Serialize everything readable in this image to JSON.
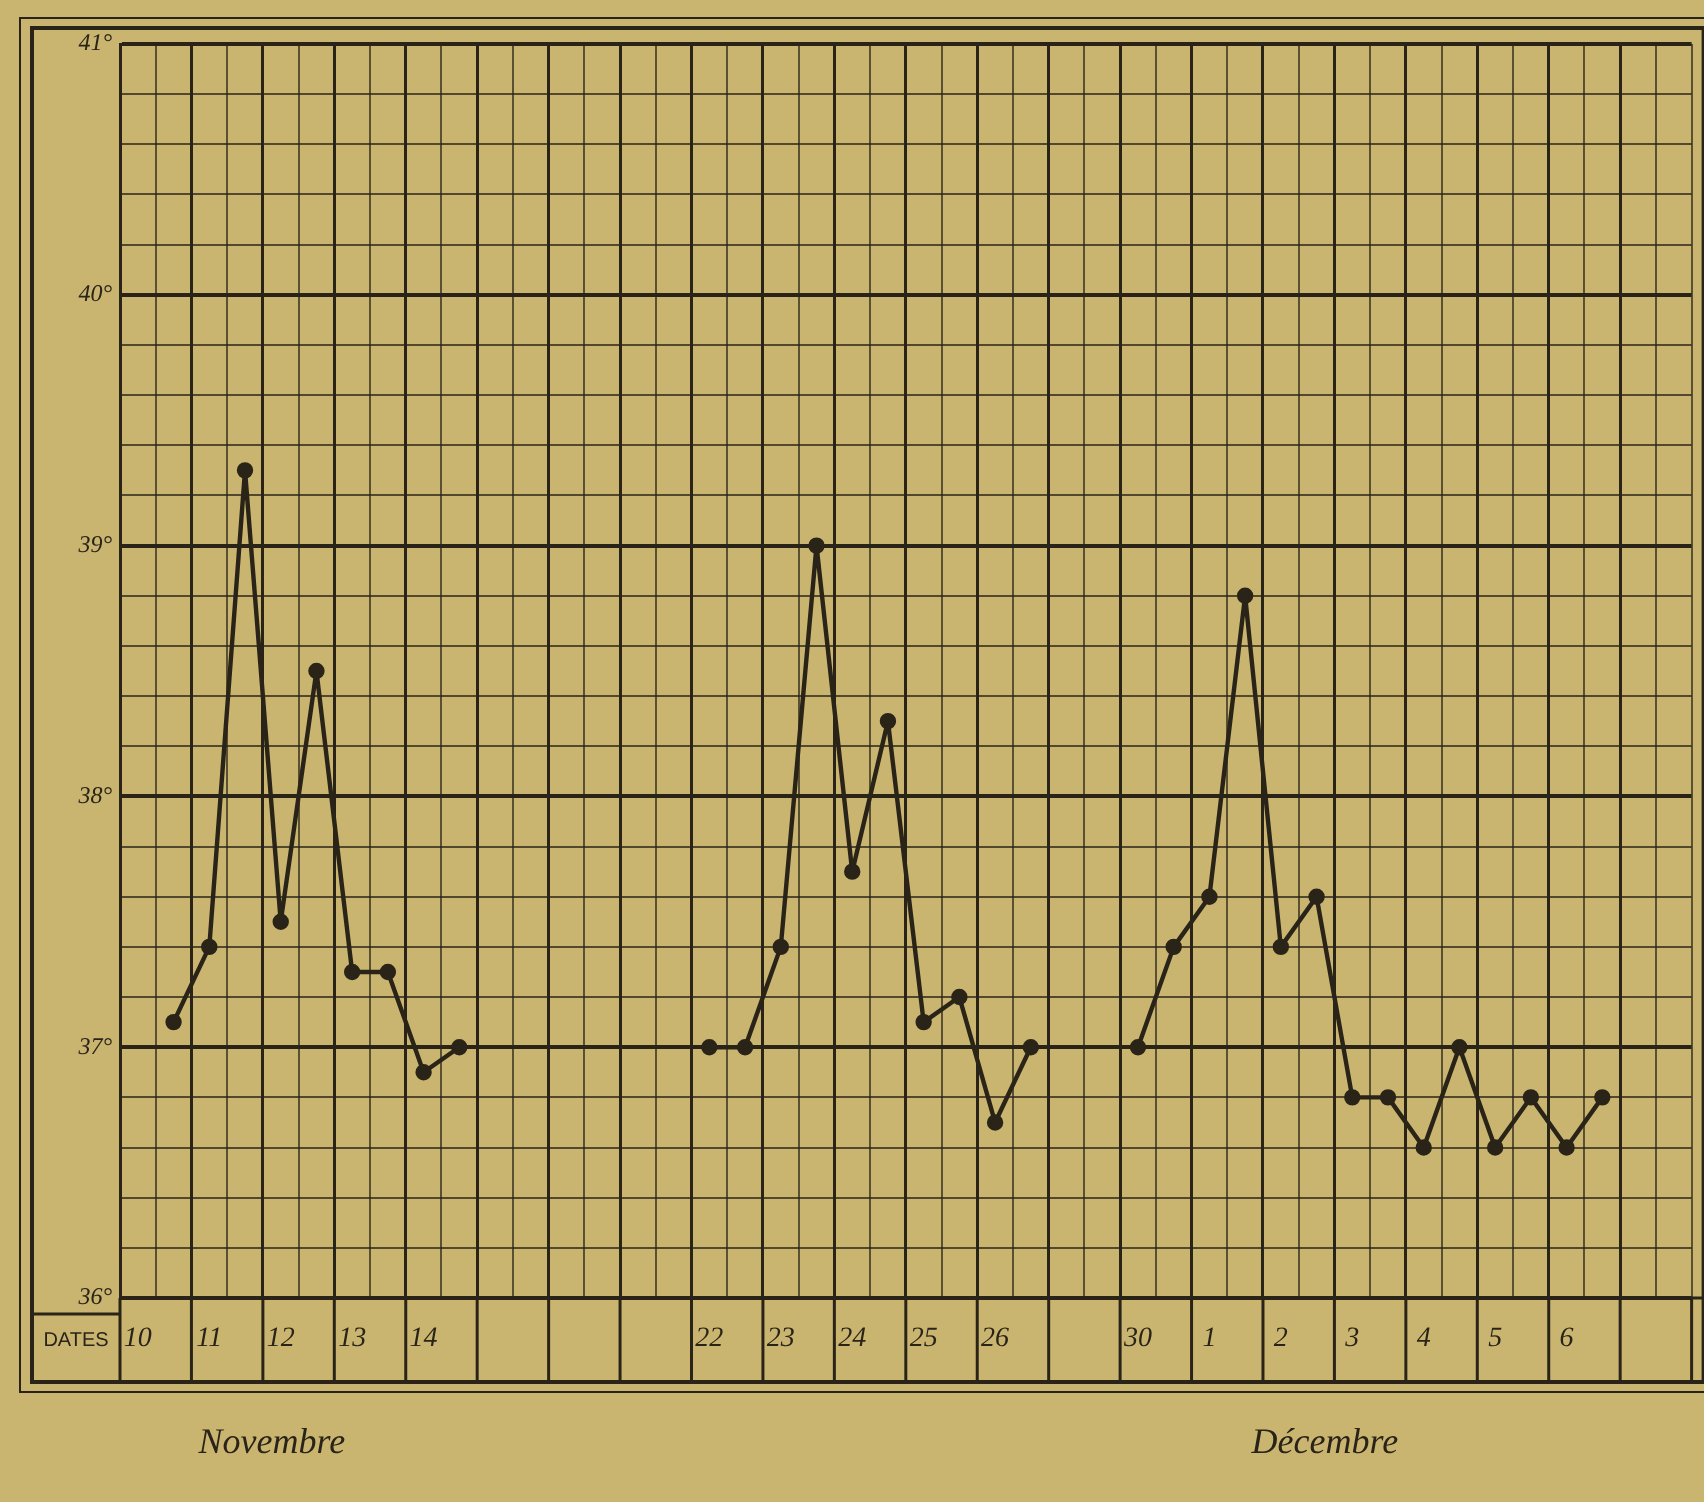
{
  "chart_data": {
    "type": "line",
    "xlabel": "DATES",
    "categories": [
      "10",
      null,
      "11",
      null,
      "12",
      null,
      "13",
      null,
      "14",
      null,
      null,
      null,
      null,
      null,
      null,
      null,
      "22",
      null,
      "23",
      null,
      "24",
      null,
      "25",
      null,
      "26",
      null,
      null,
      null,
      "30",
      null,
      "1",
      null,
      "2",
      null,
      "3",
      null,
      "4",
      null,
      "5",
      null,
      "6",
      null,
      null,
      null
    ],
    "series": [
      {
        "color": "#2a2418",
        "values": [
          null,
          37.1,
          37.4,
          39.3,
          37.5,
          38.5,
          37.3,
          37.3,
          36.9,
          37.0,
          null,
          null,
          null,
          null,
          null,
          null,
          37.0,
          37.0,
          37.4,
          39.0,
          37.7,
          38.3,
          37.1,
          37.2,
          36.7,
          37.0,
          null,
          null,
          37.0,
          37.4,
          37.6,
          38.8,
          37.4,
          37.6,
          36.8,
          36.8,
          36.6,
          37.0,
          36.6,
          36.8,
          36.6,
          36.8,
          null,
          null
        ]
      }
    ],
    "ylim": [
      36,
      41
    ],
    "yticks": [
      {
        "value": 36,
        "label": "36°"
      },
      {
        "value": 36.2,
        "label": null
      },
      {
        "value": 36.4,
        "label": null
      },
      {
        "value": 36.6,
        "label": null
      },
      {
        "value": 36.8,
        "label": null
      },
      {
        "value": 37,
        "label": "37°"
      },
      {
        "value": 37.2,
        "label": null
      },
      {
        "value": 37.4,
        "label": null
      },
      {
        "value": 37.6,
        "label": null
      },
      {
        "value": 37.8,
        "label": null
      },
      {
        "value": 38,
        "label": "38°"
      },
      {
        "value": 38.2,
        "label": null
      },
      {
        "value": 38.4,
        "label": null
      },
      {
        "value": 38.6,
        "label": null
      },
      {
        "value": 38.8,
        "label": null
      },
      {
        "value": 39,
        "label": "39°"
      },
      {
        "value": 39.2,
        "label": null
      },
      {
        "value": 39.4,
        "label": null
      },
      {
        "value": 39.6,
        "label": null
      },
      {
        "value": 39.8,
        "label": null
      },
      {
        "value": 40,
        "label": "40°"
      },
      {
        "value": 40.2,
        "label": null
      },
      {
        "value": 40.4,
        "label": null
      },
      {
        "value": 40.6,
        "label": null
      },
      {
        "value": 40.8,
        "label": null
      },
      {
        "value": 41,
        "label": "41°"
      }
    ],
    "grid": true,
    "legend": false,
    "marker": "circle",
    "line_style": "solid",
    "annotations": [
      "Novembre",
      "Décembre"
    ]
  }
}
